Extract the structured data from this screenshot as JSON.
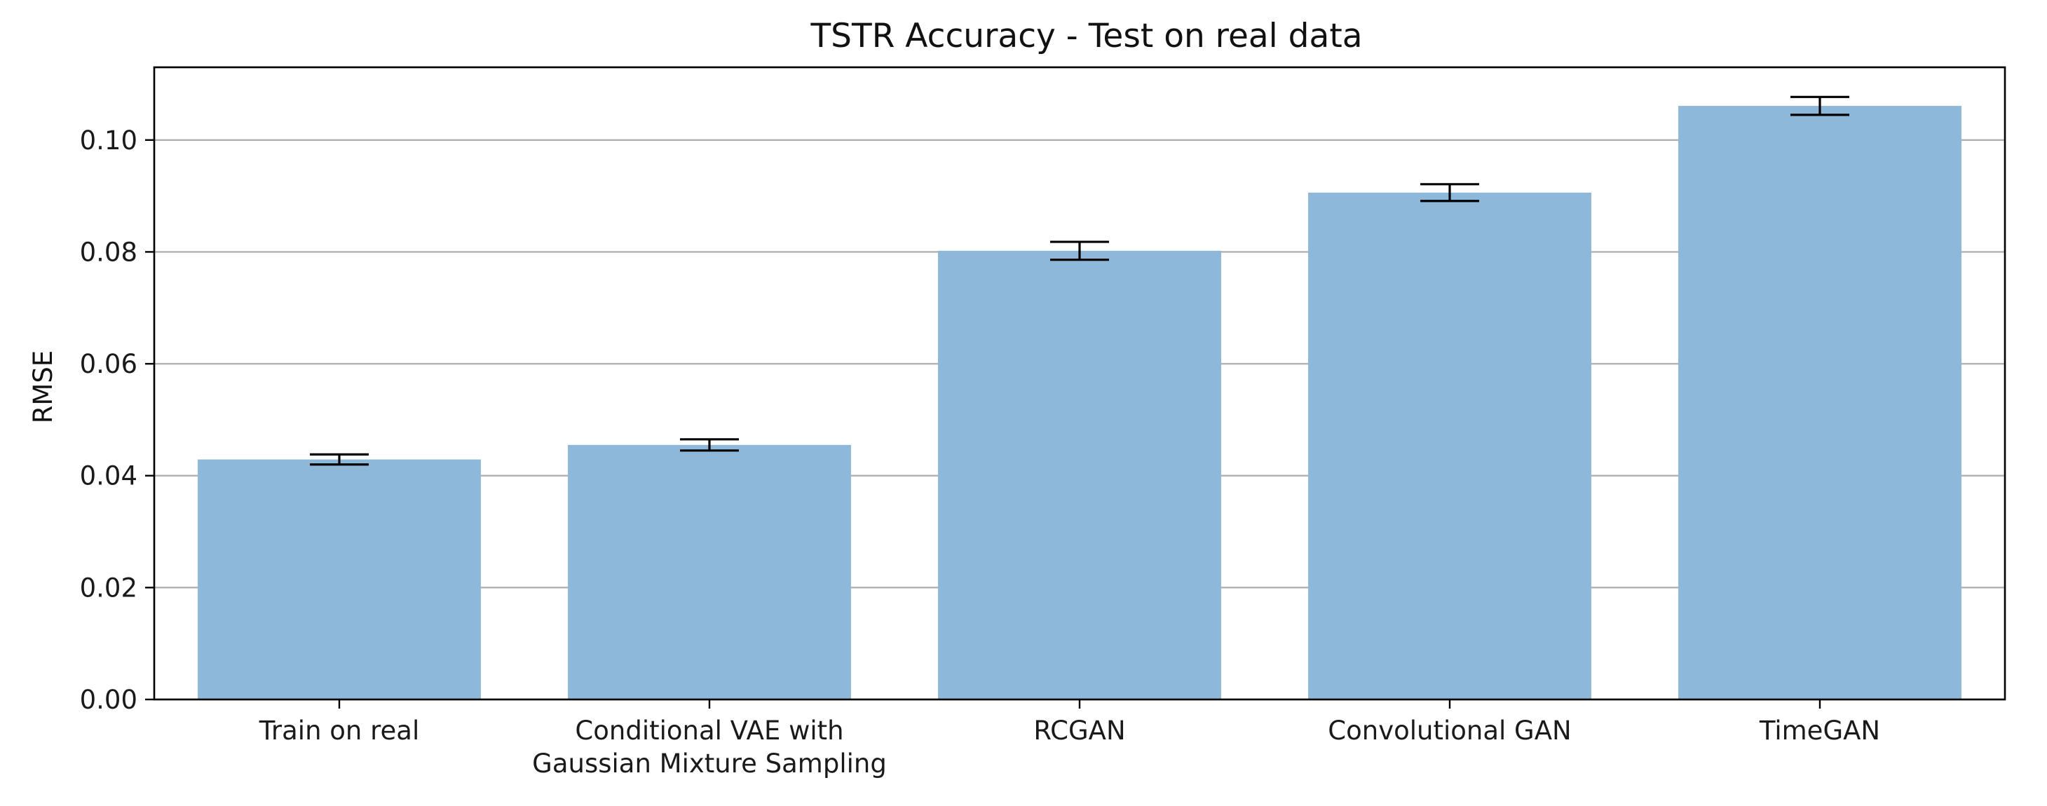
{
  "chart_data": {
    "type": "bar",
    "title": "TSTR Accuracy - Test on real data",
    "xlabel": "",
    "ylabel": "RMSE",
    "categories": [
      [
        "Train on real"
      ],
      [
        "Conditional VAE with",
        "Gaussian Mixture Sampling"
      ],
      [
        "RCGAN"
      ],
      [
        "Convolutional GAN"
      ],
      [
        "TimeGAN"
      ]
    ],
    "values": [
      0.0429,
      0.0455,
      0.0802,
      0.0906,
      0.1061
    ],
    "errors": [
      0.0009,
      0.001,
      0.0016,
      0.0015,
      0.0016
    ],
    "ylim": [
      0,
      0.113
    ],
    "yticks": [
      0.0,
      0.02,
      0.04,
      0.06,
      0.08,
      0.1
    ],
    "ytick_labels": [
      "0.00",
      "0.02",
      "0.04",
      "0.06",
      "0.08",
      "0.10"
    ],
    "grid": "y",
    "bar_color": "#8db8d9",
    "error_color": "#000000"
  }
}
